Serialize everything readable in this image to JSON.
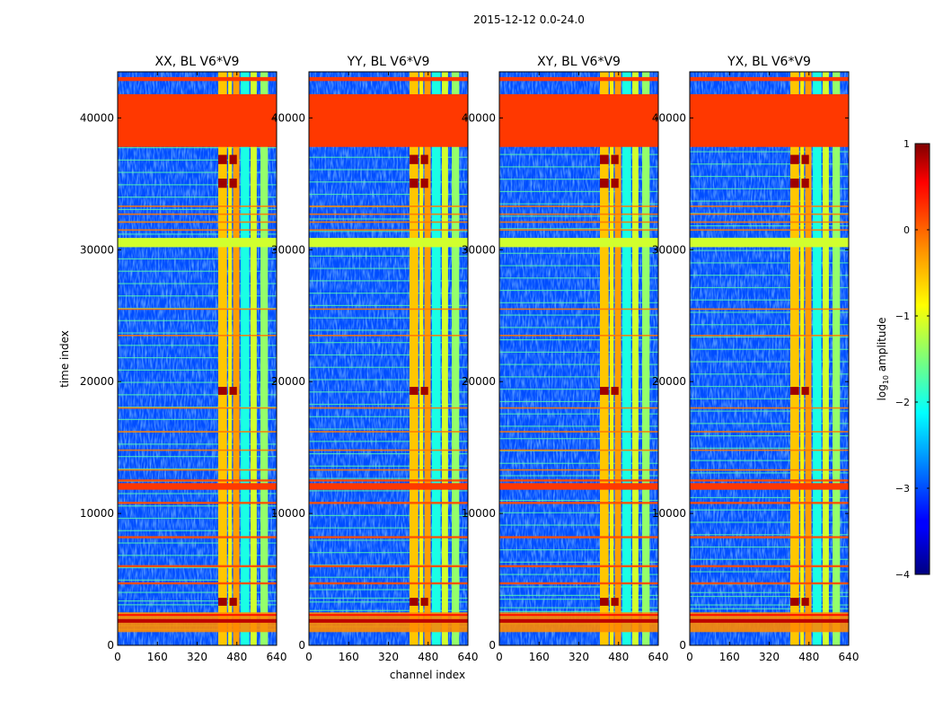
{
  "suptitle": "2015-12-12 0.0-24.0",
  "chart_data": {
    "type": "heatmap",
    "colormap": "jet",
    "xlabel": "channel index",
    "ylabel": "time index",
    "xlim": [
      0,
      640
    ],
    "ylim": [
      0,
      43500
    ],
    "xticks": [
      "0",
      "160",
      "320",
      "480",
      "640"
    ],
    "yticks": [
      "0",
      "10000",
      "20000",
      "30000",
      "40000"
    ],
    "colorbar": {
      "label": "log10 amplitude",
      "label_base": "log",
      "label_sub": "10",
      "label_rest": " amplitude",
      "range": [
        -4,
        1
      ],
      "ticks": [
        "1",
        "0",
        "−1",
        "−2",
        "−3",
        "−4"
      ]
    },
    "panels": [
      {
        "title": "XX, BL V6*V9",
        "pol": "XX",
        "baseline": "V6*V9"
      },
      {
        "title": "YY, BL V6*V9",
        "pol": "YY",
        "baseline": "V6*V9"
      },
      {
        "title": "XY, BL V6*V9",
        "pol": "XY",
        "baseline": "V6*V9"
      },
      {
        "title": "YX, BL V6*V9",
        "pol": "YX",
        "baseline": "V6*V9"
      }
    ],
    "flagged_value": 0.1,
    "flagged_time_ranges": [
      [
        37800,
        41800
      ],
      [
        42800,
        43100
      ],
      [
        30200,
        30900
      ],
      [
        11800,
        12300
      ]
    ],
    "rfi_channel_bands": [
      [
        405,
        440
      ],
      [
        445,
        460
      ],
      [
        465,
        490
      ],
      [
        535,
        560
      ],
      [
        575,
        605
      ]
    ],
    "hot_bands": [
      [
        405,
        440
      ],
      [
        450,
        480
      ]
    ],
    "hot_time_ranges": [
      [
        36500,
        37200
      ],
      [
        34700,
        35400
      ],
      [
        19000,
        19600
      ],
      [
        3000,
        3600
      ]
    ],
    "strong_time_rows": [
      12500,
      10800,
      8200,
      6000,
      4700,
      1800
    ],
    "ripple_time_range": [
      1000,
      2500
    ]
  }
}
